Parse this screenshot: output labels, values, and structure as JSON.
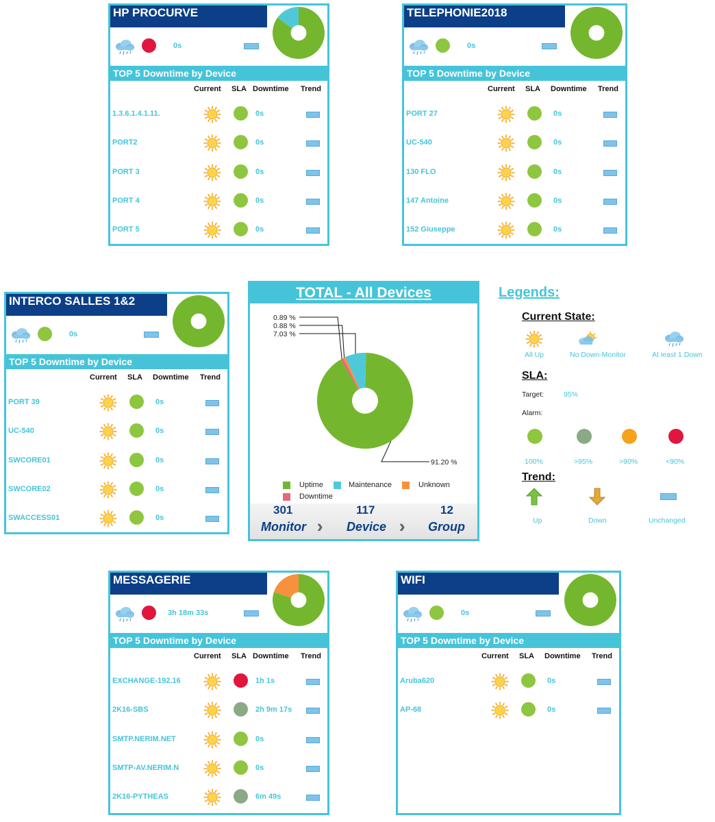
{
  "colors": {
    "accent": "#45c4d9",
    "title_bg": "#0c3f87",
    "green": "#8ec63f",
    "green_dark": "#74b72e",
    "red": "#e0163f",
    "grey_green": "#8aaa86",
    "orange": "#f7a21b",
    "maintenance": "#4fc9d8",
    "unknown": "#f7913d",
    "downtime": "#e8657a"
  },
  "column_headers": {
    "current": "Current",
    "sla": "SLA",
    "downtime": "Downtime",
    "trend": "Trend"
  },
  "band_label": "TOP 5 Downtime by Device",
  "panels": [
    {
      "title": "HP PROCURVE",
      "status_icon": "cloud-rain-icon",
      "status_dot": "red",
      "downtime": "0s",
      "donut": {
        "uptime": 0.85,
        "maintenance": 0.15,
        "unknown": 0
      },
      "rows": [
        {
          "name": "1.3.6.1.4.1.11.",
          "sla": "green",
          "downtime": "0s"
        },
        {
          "name": "PORT2",
          "sla": "green",
          "downtime": "0s"
        },
        {
          "name": "PORT 3",
          "sla": "green",
          "downtime": "0s"
        },
        {
          "name": "PORT 4",
          "sla": "green",
          "downtime": "0s"
        },
        {
          "name": "PORT 5",
          "sla": "green",
          "downtime": "0s"
        }
      ]
    },
    {
      "title": "TELEPHONIE2018",
      "status_icon": "cloud-rain-icon",
      "status_dot": "green",
      "downtime": "0s",
      "donut": {
        "uptime": 1.0,
        "maintenance": 0,
        "unknown": 0
      },
      "rows": [
        {
          "name": "PORT 27",
          "sla": "green",
          "downtime": "0s"
        },
        {
          "name": "UC-540",
          "sla": "green",
          "downtime": "0s"
        },
        {
          "name": "130 FLO",
          "sla": "green",
          "downtime": "0s"
        },
        {
          "name": "147 Antoine",
          "sla": "green",
          "downtime": "0s"
        },
        {
          "name": "152 Giuseppe",
          "sla": "green",
          "downtime": "0s"
        }
      ]
    },
    {
      "title": "INTERCO SALLES 1&2",
      "status_icon": "cloud-rain-icon",
      "status_dot": "green",
      "downtime": "0s",
      "donut": {
        "uptime": 1.0,
        "maintenance": 0,
        "unknown": 0
      },
      "rows": [
        {
          "name": "PORT 39",
          "sla": "green",
          "downtime": "0s"
        },
        {
          "name": "UC-540",
          "sla": "green",
          "downtime": "0s"
        },
        {
          "name": "SWCORE01",
          "sla": "green",
          "downtime": "0s"
        },
        {
          "name": "SWCORE02",
          "sla": "green",
          "downtime": "0s"
        },
        {
          "name": "SWACCESS01",
          "sla": "green",
          "downtime": "0s"
        }
      ]
    },
    {
      "title": "MESSAGERIE",
      "status_icon": "cloud-rain-icon",
      "status_dot": "red",
      "downtime": "3h 18m 33s",
      "donut": {
        "uptime": 0.8,
        "maintenance": 0,
        "unknown": 0.2
      },
      "rows": [
        {
          "name": "EXCHANGE-192.16",
          "sla": "red",
          "downtime": "1h 1s"
        },
        {
          "name": "2K16-SBS",
          "sla": "grey_green",
          "downtime": "2h 9m 17s"
        },
        {
          "name": "SMTP.NERIM.NET",
          "sla": "green",
          "downtime": "0s"
        },
        {
          "name": "SMTP-AV.NERIM.N",
          "sla": "green",
          "downtime": "0s"
        },
        {
          "name": "2K16-PYTHEAS",
          "sla": "grey_green",
          "downtime": "6m 49s"
        }
      ]
    },
    {
      "title": "WIFI",
      "status_icon": "cloud-rain-icon",
      "status_dot": "green",
      "downtime": "0s",
      "donut": {
        "uptime": 1.0,
        "maintenance": 0,
        "unknown": 0
      },
      "rows": [
        {
          "name": "Aruba620",
          "sla": "green",
          "downtime": "0s"
        },
        {
          "name": "AP-68",
          "sla": "green",
          "downtime": "0s"
        }
      ]
    }
  ],
  "total": {
    "title": "TOTAL - All Devices",
    "labels": {
      "downtime_pct": "0.89 %",
      "unknown_pct": "0.88 %",
      "maintenance_pct": "7.03 %",
      "uptime_pct": "91.20 %"
    },
    "legend": [
      "Uptime",
      "Maintenance",
      "Unknown",
      "Downtime"
    ],
    "counts": [
      {
        "value": "301",
        "label": "Monitor"
      },
      {
        "value": "117",
        "label": "Device"
      },
      {
        "value": "12",
        "label": "Group"
      }
    ]
  },
  "chart_data": {
    "type": "pie",
    "title": "TOTAL - All Devices",
    "categories": [
      "Uptime",
      "Maintenance",
      "Unknown",
      "Downtime"
    ],
    "values": [
      91.2,
      7.03,
      0.88,
      0.89
    ],
    "unit": "%"
  },
  "legends": {
    "title": "Legends:",
    "current_state": {
      "heading": "Current State:",
      "items": [
        {
          "icon": "sun-icon",
          "label": "All Up"
        },
        {
          "icon": "sun-cloud-icon",
          "label": "No Down-Monitor"
        },
        {
          "icon": "cloud-rain-icon",
          "label": "At least 1 Down"
        }
      ]
    },
    "sla": {
      "heading": "SLA:",
      "target_label": "Target:",
      "target_value": "95%",
      "alarm_label": "Alarm:",
      "items": [
        {
          "color": "green",
          "label": "100%"
        },
        {
          "color": "grey_green",
          "label": ">95%"
        },
        {
          "color": "orange",
          "label": ">90%"
        },
        {
          "color": "red",
          "label": "<90%"
        }
      ]
    },
    "trend": {
      "heading": "Trend:",
      "items": [
        {
          "icon": "arrow-up-icon",
          "label": "Up"
        },
        {
          "icon": "arrow-down-icon",
          "label": "Down"
        },
        {
          "icon": "bar-unchanged-icon",
          "label": "Unchanged"
        }
      ]
    }
  }
}
